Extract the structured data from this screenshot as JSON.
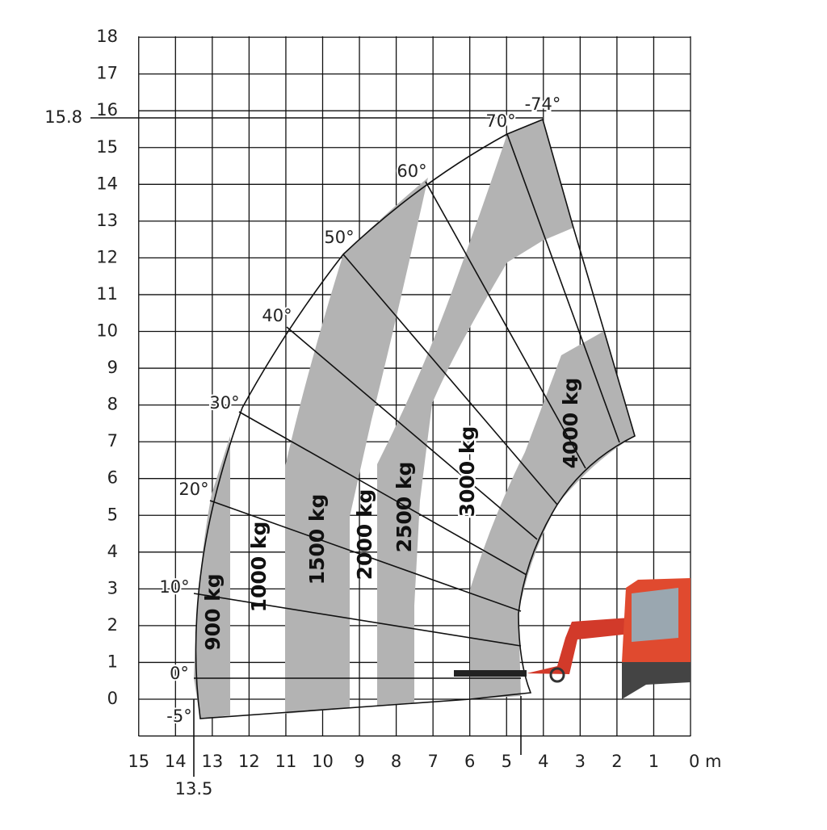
{
  "y_axis": {
    "labels": [
      "0",
      "1",
      "2",
      "3",
      "4",
      "5",
      "6",
      "7",
      "8",
      "9",
      "10",
      "11",
      "12",
      "13",
      "14",
      "15",
      "16",
      "17",
      "18"
    ]
  },
  "x_axis": {
    "labels": [
      "15",
      "14",
      "13",
      "12",
      "11",
      "10",
      "9",
      "8",
      "7",
      "6",
      "5",
      "4",
      "3",
      "2",
      "1",
      "0 m"
    ]
  },
  "marks": {
    "max_height": "15.8",
    "max_reach": "13.5"
  },
  "angles": [
    "-5°",
    "0°",
    "10°",
    "20°",
    "30°",
    "40°",
    "50°",
    "60°",
    "70°",
    "-74°"
  ],
  "loads": [
    "900 kg",
    "1000 kg",
    "1500 kg",
    "2000 kg",
    "2500 kg",
    "3000 kg",
    "4000 kg"
  ]
}
